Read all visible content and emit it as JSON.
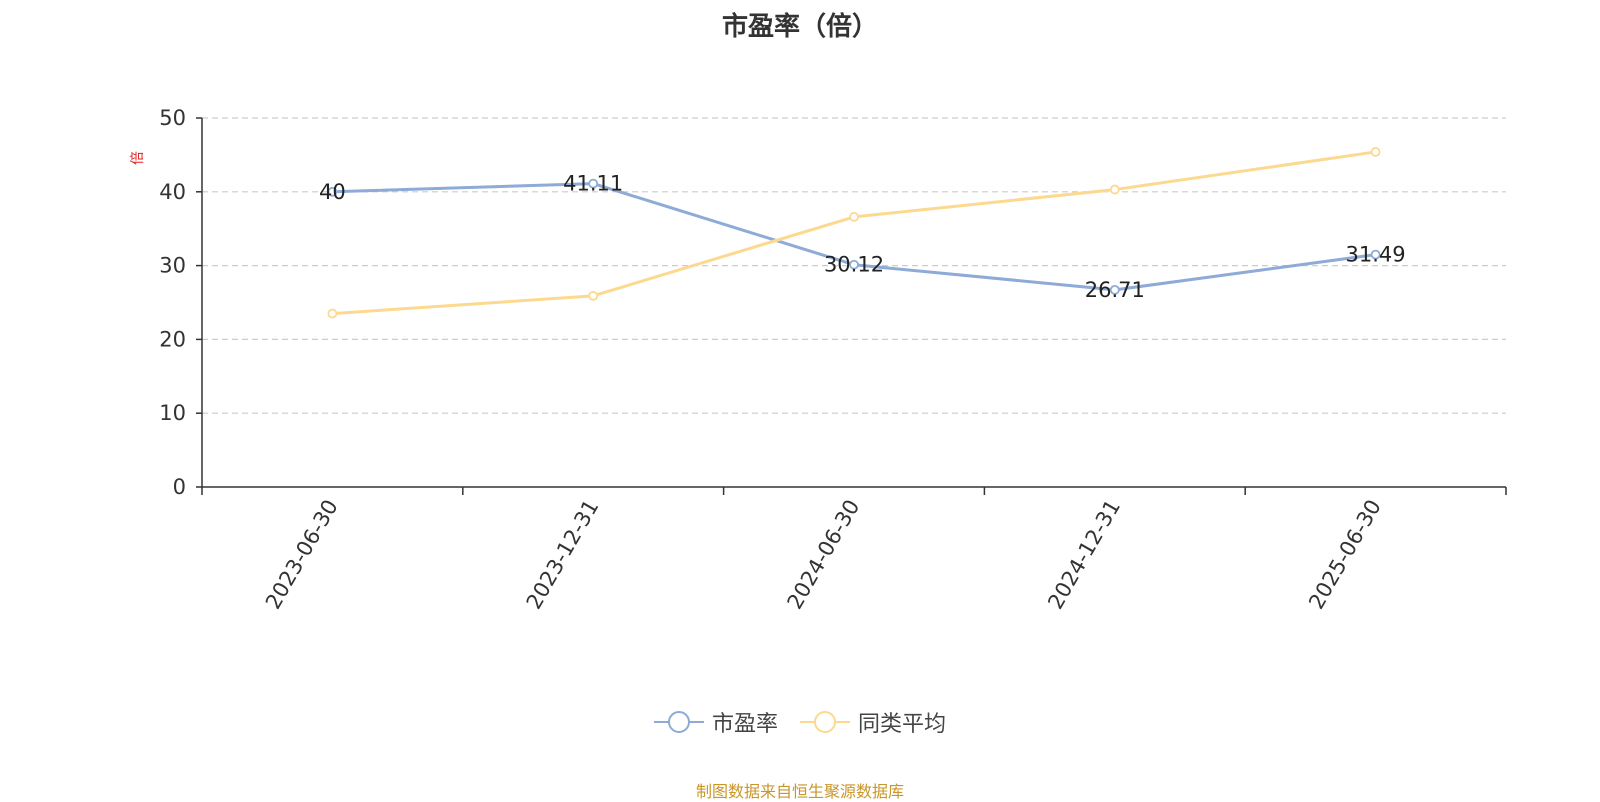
{
  "title": "市盈率（倍）",
  "source_note": "制图数据来自恒生聚源数据库",
  "colors": {
    "pe": "#8eaad6",
    "avg": "#fcd98f",
    "axis": "#333333",
    "grid": "#cccccc",
    "unit": "#e02020",
    "source": "#c9962a"
  },
  "chart_data": {
    "type": "line",
    "title": "市盈率（倍）",
    "ylabel": "倍",
    "ylim": [
      0,
      50
    ],
    "yticks": [
      0,
      10,
      20,
      30,
      40,
      50
    ],
    "grid": true,
    "legend_position": "bottom",
    "categories": [
      "2023-06-30",
      "2023-12-31",
      "2024-06-30",
      "2024-12-31",
      "2025-06-30"
    ],
    "series": [
      {
        "name": "市盈率",
        "values": [
          40,
          41.11,
          30.12,
          26.71,
          31.49
        ],
        "labels": [
          "40",
          "41.11",
          "30.12",
          "26.71",
          "31.49"
        ],
        "color": "#8eaad6"
      },
      {
        "name": "同类平均",
        "values": [
          23.5,
          25.9,
          36.6,
          40.3,
          45.4
        ],
        "color": "#fcd98f"
      }
    ]
  }
}
